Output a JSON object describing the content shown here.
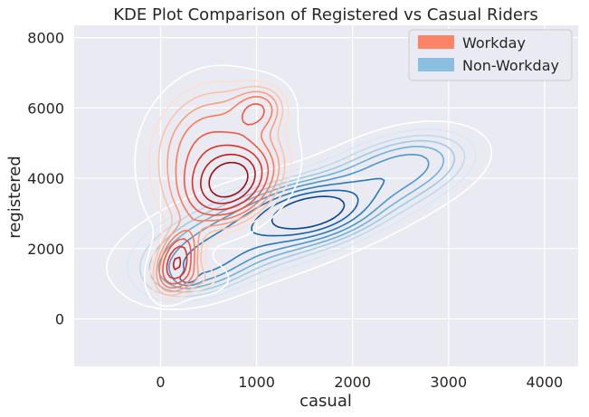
{
  "chart_data": {
    "type": "kde-contour",
    "title": "KDE Plot Comparison of Registered vs Casual Riders",
    "xlabel": "casual",
    "ylabel": "registered",
    "xlim": [
      -900,
      4350
    ],
    "ylim": [
      -1350,
      8350
    ],
    "x_ticks": [
      0,
      1000,
      2000,
      3000,
      4000
    ],
    "y_ticks": [
      0,
      2000,
      4000,
      6000,
      8000
    ],
    "grid": true,
    "legend_position": "top-right",
    "series": [
      {
        "name": "Workday",
        "swatch_color": "#fb8466",
        "palette": [
          "#fff0ea",
          "#fee0d2",
          "#fcc3ab",
          "#fc9f81",
          "#fb7a5a",
          "#f5553c",
          "#e32f27",
          "#c3161b",
          "#9b0d14",
          "#67000d"
        ],
        "modes": [
          {
            "x": 750,
            "y": 3880,
            "sx": 290,
            "sy": 700,
            "rho": 0.3,
            "w": 1.0
          },
          {
            "x": 170,
            "y": 1650,
            "sx": 140,
            "sy": 560,
            "rho": 0.35,
            "w": 0.78
          },
          {
            "x": 1020,
            "y": 5950,
            "sx": 170,
            "sy": 420,
            "rho": 0.1,
            "w": 0.38
          },
          {
            "x": 380,
            "y": 4600,
            "sx": 320,
            "sy": 1200,
            "rho": 0.2,
            "w": 0.3
          },
          {
            "x": 620,
            "y": 5300,
            "sx": 420,
            "sy": 1000,
            "rho": 0.2,
            "w": 0.22
          },
          {
            "x": 360,
            "y": 1150,
            "sx": 220,
            "sy": 320,
            "rho": 0.0,
            "w": 0.2
          }
        ],
        "levels": [
          0.05,
          0.11,
          0.17,
          0.24,
          0.32,
          0.42,
          0.54,
          0.68,
          0.82
        ]
      },
      {
        "name": "Non-Workday",
        "swatch_color": "#8bbfdf",
        "palette": [
          "#ecf4fb",
          "#dae8f6",
          "#c2d9ee",
          "#a1cbe3",
          "#72b2d7",
          "#4b97c9",
          "#2a7ab9",
          "#1361a8",
          "#08468b",
          "#08306b"
        ],
        "modes": [
          {
            "x": 1580,
            "y": 3050,
            "sx": 330,
            "sy": 440,
            "rho": 0.25,
            "w": 1.0
          },
          {
            "x": 1200,
            "y": 2700,
            "sx": 750,
            "sy": 800,
            "rho": 0.6,
            "w": 0.55
          },
          {
            "x": 2350,
            "y": 4050,
            "sx": 480,
            "sy": 700,
            "rho": 0.45,
            "w": 0.5
          },
          {
            "x": 400,
            "y": 1450,
            "sx": 320,
            "sy": 520,
            "rho": 0.35,
            "w": 0.5
          },
          {
            "x": 280,
            "y": 1120,
            "sx": 70,
            "sy": 110,
            "rho": 0.0,
            "w": 0.32
          },
          {
            "x": 2700,
            "y": 4550,
            "sx": 350,
            "sy": 500,
            "rho": 0.2,
            "w": 0.2
          },
          {
            "x": 900,
            "y": 2400,
            "sx": 650,
            "sy": 900,
            "rho": 0.5,
            "w": 0.3
          }
        ],
        "levels": [
          0.035,
          0.075,
          0.12,
          0.17,
          0.23,
          0.31,
          0.42,
          0.56,
          0.72
        ]
      }
    ]
  }
}
